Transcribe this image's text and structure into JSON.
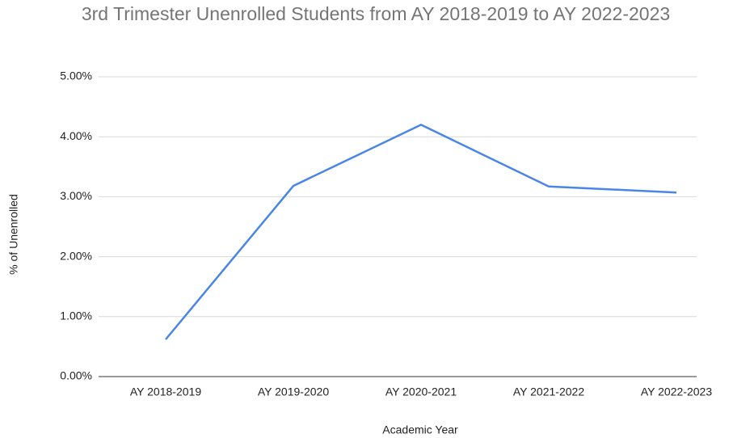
{
  "chart_data": {
    "type": "line",
    "title": "3rd Trimester Unenrolled Students from AY 2018-2019 to AY 2022-2023",
    "x_label": "Academic Year",
    "y_label": "% of Unenrolled",
    "categories": [
      "AY 2018-2019",
      "AY 2019-2020",
      "AY 2020-2021",
      "AY 2021-2022",
      "AY 2022-2023"
    ],
    "series": [
      {
        "name": "% of Unenrolled",
        "color": "#4a86e8",
        "values": [
          0.62,
          3.18,
          4.2,
          3.17,
          3.07
        ]
      }
    ],
    "ylim": [
      0,
      5
    ],
    "yticks": [
      {
        "value": 0,
        "label": "0.00%"
      },
      {
        "value": 1,
        "label": "1.00%"
      },
      {
        "value": 2,
        "label": "2.00%"
      },
      {
        "value": 3,
        "label": "3.00%"
      },
      {
        "value": 4,
        "label": "4.00%"
      },
      {
        "value": 5,
        "label": "5.00%"
      }
    ],
    "grid": true
  }
}
